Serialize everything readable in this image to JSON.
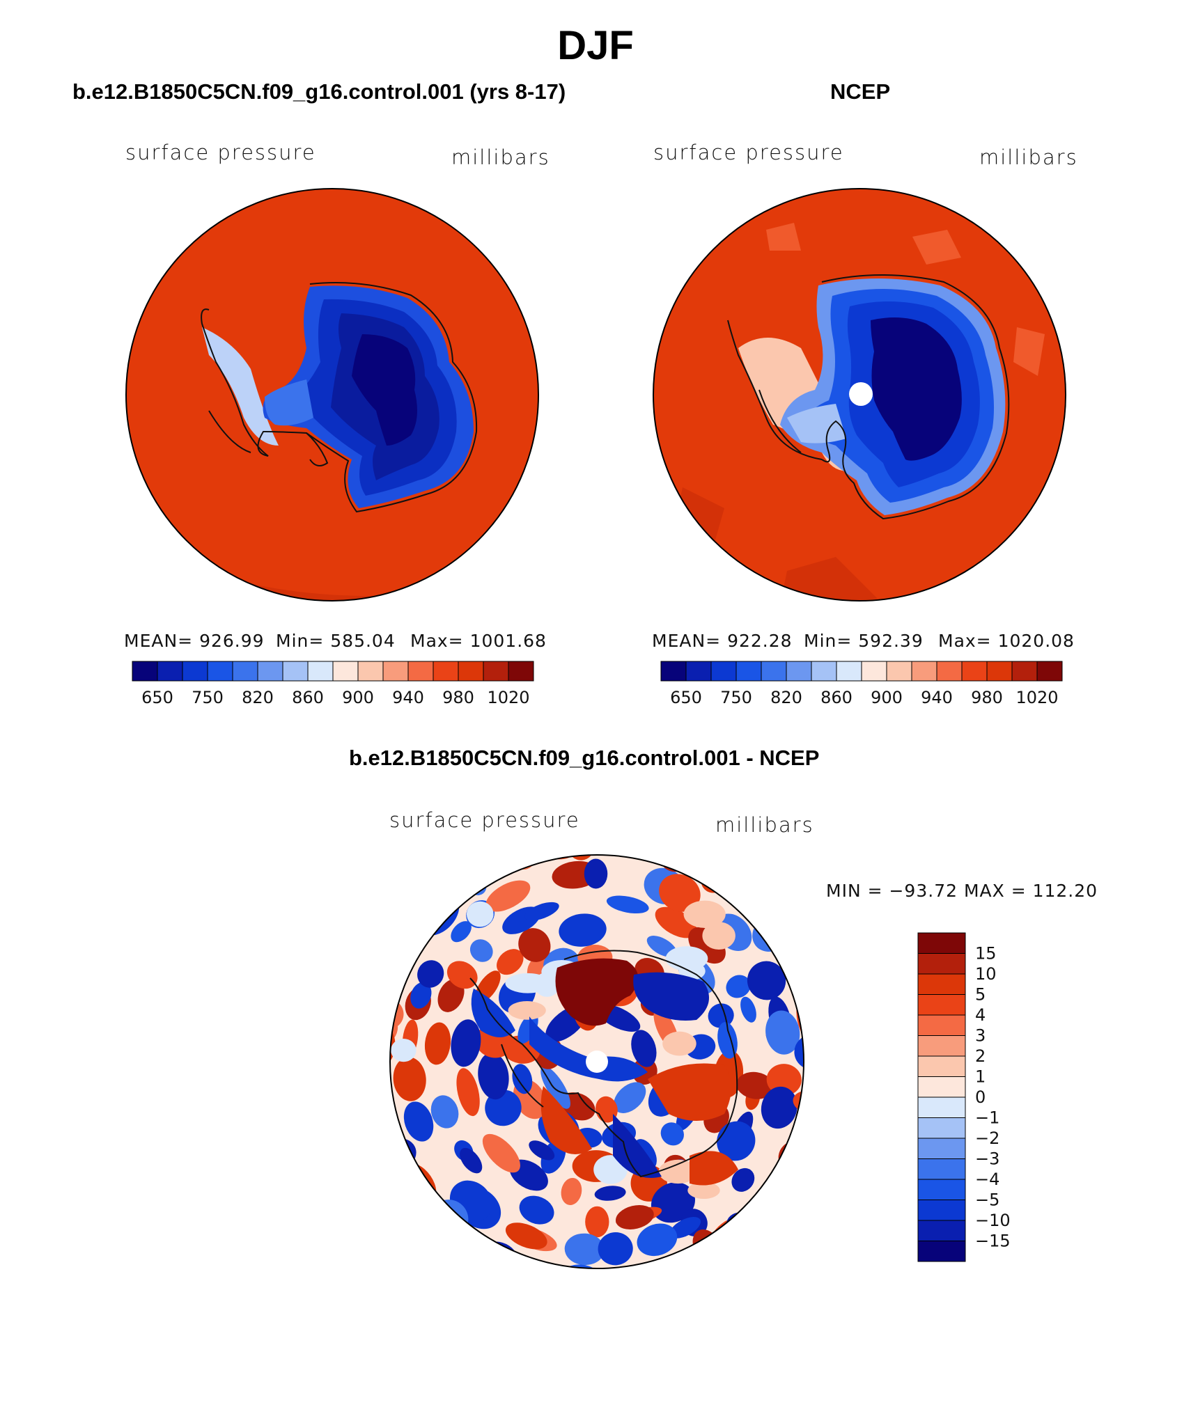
{
  "figure": {
    "title": "DJF"
  },
  "chart_data": [
    {
      "type": "heatmap",
      "panel": "model",
      "title": "b.e12.B1850C5CN.f09_g16.control.001 (yrs 8-17)",
      "variable": "surface pressure",
      "units": "millibars",
      "projection": "south polar stereographic",
      "stats": {
        "mean_label": "MEAN= 926.99",
        "min_label": "Min= 585.04",
        "max_label": "Max= 1001.68",
        "mean": 926.99,
        "min": 585.04,
        "max": 1001.68
      },
      "colorbar": {
        "orientation": "horizontal",
        "levels": [
          650,
          700,
          750,
          800,
          820,
          840,
          860,
          880,
          900,
          920,
          940,
          960,
          980,
          1000,
          1020
        ],
        "tick_labels": [
          "650",
          "750",
          "820",
          "860",
          "900",
          "940",
          "980",
          "1020"
        ],
        "colors": [
          "#07037a",
          "#0a1fb0",
          "#0c39d2",
          "#1a55e6",
          "#3b73ec",
          "#6c97f0",
          "#a5c2f6",
          "#d9e8fb",
          "#fde7dc",
          "#fbc7ae",
          "#f89c7c",
          "#f46a44",
          "#ea4317",
          "#dc3709",
          "#b3200c",
          "#7e0707"
        ]
      }
    },
    {
      "type": "heatmap",
      "panel": "obs",
      "title": "NCEP",
      "variable": "surface pressure",
      "units": "millibars",
      "projection": "south polar stereographic",
      "stats": {
        "mean_label": "MEAN= 922.28",
        "min_label": "Min= 592.39",
        "max_label": "Max= 1020.08",
        "mean": 922.28,
        "min": 592.39,
        "max": 1020.08
      },
      "colorbar": {
        "orientation": "horizontal",
        "levels": [
          650,
          700,
          750,
          800,
          820,
          840,
          860,
          880,
          900,
          920,
          940,
          960,
          980,
          1000,
          1020
        ],
        "tick_labels": [
          "650",
          "750",
          "820",
          "860",
          "900",
          "940",
          "980",
          "1020"
        ],
        "colors": [
          "#07037a",
          "#0a1fb0",
          "#0c39d2",
          "#1a55e6",
          "#3b73ec",
          "#6c97f0",
          "#a5c2f6",
          "#d9e8fb",
          "#fde7dc",
          "#fbc7ae",
          "#f89c7c",
          "#f46a44",
          "#ea4317",
          "#dc3709",
          "#b3200c",
          "#7e0707"
        ]
      }
    },
    {
      "type": "heatmap",
      "panel": "difference",
      "title": "b.e12.B1850C5CN.f09_g16.control.001 - NCEP",
      "variable": "surface pressure",
      "units": "millibars",
      "projection": "south polar stereographic",
      "stats": {
        "label": "MIN = −93.72 MAX = 112.20",
        "min": -93.72,
        "max": 112.2
      },
      "colorbar": {
        "orientation": "vertical",
        "levels": [
          -15,
          -10,
          -5,
          -4,
          -3,
          -2,
          -1,
          0,
          1,
          2,
          3,
          4,
          5,
          10,
          15
        ],
        "tick_labels": [
          "15",
          "10",
          "5",
          "4",
          "3",
          "2",
          "1",
          "0",
          "−1",
          "−2",
          "−3",
          "−4",
          "−5",
          "−10",
          "−15"
        ],
        "colors_top_to_bottom": [
          "#7e0707",
          "#b3200c",
          "#dc3709",
          "#ea4317",
          "#f46a44",
          "#f89c7c",
          "#fbc7ae",
          "#fde7dc",
          "#d9e8fb",
          "#a5c2f6",
          "#6c97f0",
          "#3b73ec",
          "#1a55e6",
          "#0c39d2",
          "#0a1fb0",
          "#07037a"
        ]
      }
    }
  ]
}
